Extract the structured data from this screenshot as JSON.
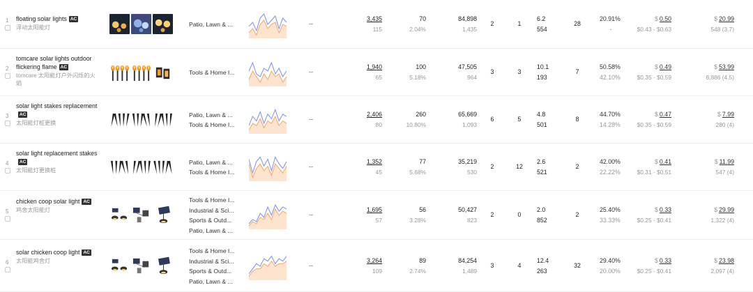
{
  "rows": [
    {
      "index": "1",
      "keyword": "floating solar lights",
      "badge": "AC",
      "keyword_cn": "浮动太阳能灯",
      "thumbs": [
        "solar-globe-thumbnail",
        "solar-disco-thumbnail",
        "solar-lantern-thumbnail"
      ],
      "categories": [
        "Patio, Lawn & ..."
      ],
      "sparkline": {
        "blue": [
          8,
          10,
          6,
          12,
          14,
          9,
          11,
          13,
          7,
          12,
          10
        ],
        "orange": [
          5,
          7,
          4,
          9,
          11,
          7,
          9,
          10,
          5,
          9,
          8
        ]
      },
      "dash": "--",
      "search_volume": "3,435",
      "search_rank": "115",
      "clicks": "70",
      "click_rate": "2.04%",
      "products": "84,898",
      "products_sub": "1,435",
      "c1": "2",
      "c2": "1",
      "ratio": "6.2",
      "ratio_sub": "554",
      "c3": "28",
      "conversion": "20.91%",
      "conversion_sub": "-",
      "ppc": "0.50",
      "ppc_range": "$0.43 - $0.63",
      "price": "20.99",
      "reviews": "548 (3.7)"
    },
    {
      "index": "2",
      "keyword": "tomcare solar lights outdoor flickering flame",
      "badge": "AC",
      "keyword_cn": "tomcare 太阳能灯户外闪烁的火焰",
      "thumbs": [
        "tiki-torch-thumbnail",
        "tiki-torch-thumbnail-2",
        "lantern-thumbnail"
      ],
      "categories": [
        "Tools & Home I..."
      ],
      "sparkline": {
        "blue": [
          9,
          12,
          8,
          7,
          10,
          9,
          12,
          8,
          10,
          7,
          9
        ],
        "orange": [
          6,
          9,
          7,
          5,
          8,
          6,
          9,
          7,
          8,
          5,
          7
        ]
      },
      "dash": "--",
      "search_volume": "1,940",
      "search_rank": "65",
      "clicks": "100",
      "click_rate": "5.18%",
      "products": "47,505",
      "products_sub": "964",
      "c1": "3",
      "c2": "3",
      "ratio": "10.1",
      "ratio_sub": "193",
      "c3": "7",
      "conversion": "50.58%",
      "conversion_sub": "42.10%",
      "ppc": "0.49",
      "ppc_range": "$0.35 - $0.59",
      "price": "53.99",
      "reviews": "6,886 (4.5)"
    },
    {
      "index": "3",
      "keyword": "solar light stakes replacement",
      "badge": "AC",
      "keyword_cn": "太阳能灯桩更换",
      "thumbs": [
        "stakes-thumbnail",
        "stakes-thumbnail-2",
        "stakes-thumbnail-3"
      ],
      "categories": [
        "Patio, Lawn & ...",
        "Tools & Home I..."
      ],
      "sparkline": {
        "blue": [
          7,
          11,
          9,
          13,
          8,
          12,
          10,
          14,
          9,
          12,
          11
        ],
        "orange": [
          5,
          8,
          7,
          10,
          6,
          9,
          8,
          11,
          7,
          9,
          8
        ]
      },
      "dash": "--",
      "search_volume": "2,406",
      "search_rank": "80",
      "clicks": "260",
      "click_rate": "10.80%",
      "products": "65,669",
      "products_sub": "1,093",
      "c1": "6",
      "c2": "5",
      "ratio": "4.8",
      "ratio_sub": "501",
      "c3": "8",
      "conversion": "44.70%",
      "conversion_sub": "14.28%",
      "ppc": "0.47",
      "ppc_range": "$0.35 - $0.59",
      "price": "7.99",
      "reviews": "280 (4)"
    },
    {
      "index": "4",
      "keyword": "solar light replacement stakes",
      "badge": "AC",
      "keyword_cn": "太阳能灯更换桩",
      "thumbs": [
        "stakes-thumbnail",
        "stakes-thumbnail-2",
        "stakes-thumbnail-3"
      ],
      "categories": [
        "Patio, Lawn & ...",
        "Tools & Home I..."
      ],
      "sparkline": {
        "blue": [
          12,
          6,
          11,
          13,
          9,
          12,
          7,
          13,
          10,
          8,
          11
        ],
        "orange": [
          10,
          4,
          8,
          10,
          7,
          9,
          5,
          10,
          8,
          6,
          9
        ]
      },
      "dash": "--",
      "search_volume": "1,352",
      "search_rank": "45",
      "clicks": "77",
      "click_rate": "5.68%",
      "products": "35,219",
      "products_sub": "530",
      "c1": "2",
      "c2": "12",
      "ratio": "2.6",
      "ratio_sub": "521",
      "c3": "2",
      "conversion": "42.00%",
      "conversion_sub": "22.22%",
      "ppc": "0.41",
      "ppc_range": "$0.31 - $0.51",
      "price": "11.99",
      "reviews": "547 (4)"
    },
    {
      "index": "5",
      "keyword": "chicken coop solar light",
      "badge": "AC",
      "keyword_cn": "鸡舍太阳能灯",
      "thumbs": [
        "coop-light-thumbnail",
        "coop-light-thumbnail-2",
        "coop-light-thumbnail-3"
      ],
      "categories": [
        "Tools & Home I...",
        "Industrial & Sci...",
        "Sports & Outd...",
        "Patio, Lawn & ..."
      ],
      "sparkline": {
        "blue": [
          4,
          6,
          5,
          9,
          7,
          12,
          8,
          13,
          10,
          12,
          11
        ],
        "orange": [
          3,
          5,
          4,
          7,
          6,
          9,
          6,
          11,
          8,
          10,
          9
        ]
      },
      "dash": "--",
      "search_volume": "1,695",
      "search_rank": "57",
      "clicks": "56",
      "click_rate": "3.28%",
      "products": "50,427",
      "products_sub": "823",
      "c1": "2",
      "c2": "0",
      "ratio": "2.0",
      "ratio_sub": "852",
      "c3": "2",
      "conversion": "25.40%",
      "conversion_sub": "33.33%",
      "ppc": "0.33",
      "ppc_range": "$0.25 - $0.41",
      "price": "29.99",
      "reviews": "1,322 (4)"
    },
    {
      "index": "6",
      "keyword": "solar chicken coop light",
      "badge": "AC",
      "keyword_cn": "太阳能鸡舍灯",
      "thumbs": [
        "coop-light-thumbnail",
        "coop-light-thumbnail-2",
        "coop-light-thumbnail-3"
      ],
      "categories": [
        "Tools & Home I...",
        "Industrial & Sci...",
        "Sports & Outd...",
        "Patio, Lawn & ..."
      ],
      "sparkline": {
        "blue": [
          5,
          7,
          9,
          8,
          11,
          10,
          12,
          9,
          11,
          10,
          12
        ],
        "orange": [
          4,
          6,
          7,
          7,
          9,
          8,
          10,
          8,
          9,
          9,
          10
        ]
      },
      "dash": "--",
      "search_volume": "3,264",
      "search_rank": "109",
      "clicks": "89",
      "click_rate": "2.74%",
      "products": "84,254",
      "products_sub": "1,489",
      "c1": "3",
      "c2": "4",
      "ratio": "12.4",
      "ratio_sub": "263",
      "c3": "32",
      "conversion": "29.40%",
      "conversion_sub": "20.00%",
      "ppc": "0.33",
      "ppc_range": "$0.25 - $0.41",
      "price": "23.98",
      "reviews": "2,097 (4)"
    }
  ],
  "currency": "$",
  "colors": {
    "blue": "#7d8cf0",
    "orange": "#f2a663",
    "fill": "#fde4cf"
  }
}
